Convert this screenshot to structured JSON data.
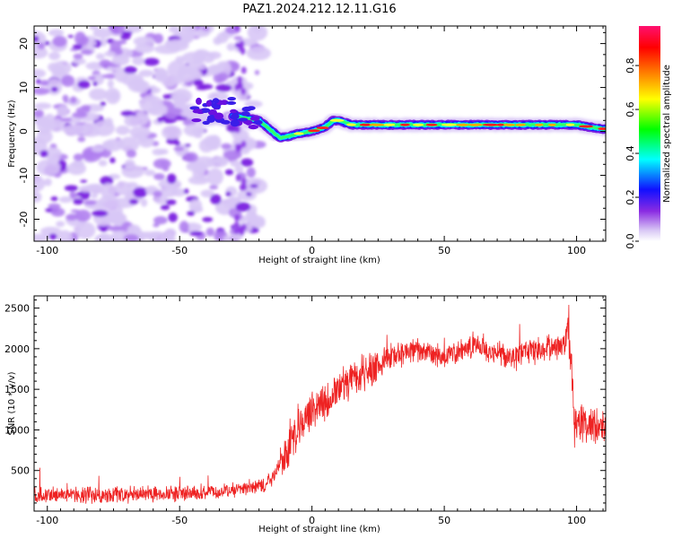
{
  "title": "PAZ1.2024.212.12.11.G16",
  "chart_data": [
    {
      "type": "heatmap",
      "xlabel": "Height of straight line (km)",
      "ylabel": "Frequency (Hz)",
      "xlim": [
        -105,
        111
      ],
      "ylim": [
        -25,
        24
      ],
      "xticks": [
        -100,
        -50,
        0,
        50,
        100
      ],
      "yticks": [
        -20,
        -10,
        0,
        10,
        20
      ],
      "colorbar": {
        "label": "Normalized spectral amplitude",
        "range": [
          0,
          0.98
        ],
        "ticks": [
          0.0,
          0.2,
          0.4,
          0.6,
          0.8
        ],
        "colormap": [
          "#ffffff",
          "#d9c8f5",
          "#8a2be2",
          "#1010ff",
          "#00ffff",
          "#00ff00",
          "#ffff00",
          "#ff8000",
          "#ff0000",
          "#ff1070"
        ]
      },
      "noise_region_x": [
        -105,
        -20
      ],
      "ridge": {
        "x": [
          -30,
          -25,
          -20,
          -15,
          -12,
          -8,
          -5,
          0,
          5,
          8,
          10,
          15,
          20,
          30,
          40,
          50,
          60,
          70,
          80,
          90,
          100,
          105,
          111
        ],
        "y": [
          3.5,
          3,
          2.5,
          0,
          -1.5,
          -1,
          -0.5,
          0,
          1,
          2.5,
          2.5,
          1.5,
          1.5,
          1.5,
          1.5,
          1.5,
          1.5,
          1.5,
          1.5,
          1.5,
          1.5,
          1,
          0.5
        ]
      }
    },
    {
      "type": "line",
      "xlabel": "Height of straight line (km)",
      "ylabel": "SNR (10 * v/v)",
      "xlim": [
        -105,
        111
      ],
      "ylim": [
        0,
        2650
      ],
      "xticks": [
        -100,
        -50,
        0,
        50,
        100
      ],
      "yticks": [
        500,
        1000,
        1500,
        2000,
        2500
      ],
      "series": [
        {
          "color": "#ee2222",
          "x": [
            -105,
            -100,
            -90,
            -80,
            -70,
            -60,
            -50,
            -40,
            -30,
            -20,
            -15,
            -10,
            -5,
            0,
            5,
            10,
            15,
            20,
            25,
            30,
            35,
            40,
            45,
            50,
            55,
            60,
            65,
            70,
            75,
            80,
            85,
            90,
            95,
            97,
            98,
            99,
            100,
            105,
            111
          ],
          "y": [
            180,
            200,
            210,
            190,
            200,
            220,
            210,
            230,
            260,
            300,
            400,
            700,
            1000,
            1250,
            1350,
            1500,
            1600,
            1700,
            1800,
            1900,
            1950,
            2000,
            1950,
            1900,
            1950,
            2050,
            2000,
            1950,
            1900,
            1950,
            2000,
            2000,
            2050,
            2200,
            1900,
            950,
            1100,
            1050,
            1050
          ]
        }
      ]
    }
  ]
}
